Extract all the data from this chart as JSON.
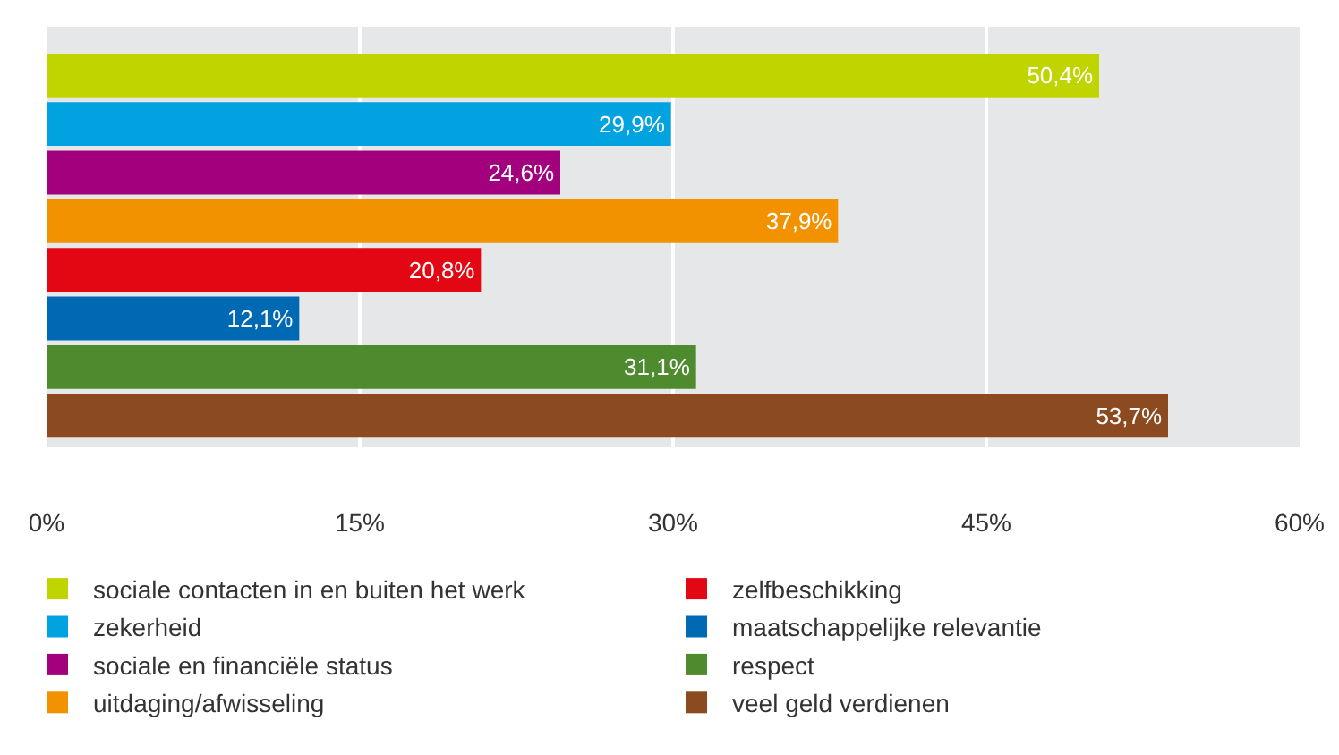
{
  "chart_data": {
    "type": "bar",
    "orientation": "horizontal",
    "categories": [
      null,
      null,
      null,
      null,
      null,
      null,
      null,
      null
    ],
    "series": [
      {
        "name": "sociale contacten in en buiten het werk",
        "color": "#c0d400",
        "values": [
          50.4,
          null,
          null,
          null,
          null,
          null,
          null,
          null
        ],
        "value_labels": [
          "50,4%",
          null,
          null,
          null,
          null,
          null,
          null,
          null
        ]
      },
      {
        "name": "zekerheid",
        "color": "#00a3e0",
        "values": [
          null,
          29.9,
          null,
          null,
          null,
          null,
          null,
          null
        ],
        "value_labels": [
          null,
          "29,9%",
          null,
          null,
          null,
          null,
          null,
          null
        ]
      },
      {
        "name": "sociale en financiële status",
        "color": "#a3007e",
        "values": [
          null,
          null,
          24.6,
          null,
          null,
          null,
          null,
          null
        ],
        "value_labels": [
          null,
          null,
          "24,6%",
          null,
          null,
          null,
          null,
          null
        ]
      },
      {
        "name": "uitdaging/afwisseling",
        "color": "#f39200",
        "values": [
          null,
          null,
          null,
          37.9,
          null,
          null,
          null,
          null
        ],
        "value_labels": [
          null,
          null,
          null,
          "37,9%",
          null,
          null,
          null,
          null
        ]
      },
      {
        "name": "zelfbeschikking",
        "color": "#e30613",
        "values": [
          null,
          null,
          null,
          null,
          20.8,
          null,
          null,
          null
        ],
        "value_labels": [
          null,
          null,
          null,
          null,
          "20,8%",
          null,
          null,
          null
        ]
      },
      {
        "name": "maatschappelijke relevantie",
        "color": "#0069b4",
        "values": [
          null,
          null,
          null,
          null,
          null,
          12.1,
          null,
          null
        ],
        "value_labels": [
          null,
          null,
          null,
          null,
          null,
          "12,1%",
          null,
          null
        ]
      },
      {
        "name": "respect",
        "color": "#4e8a2e",
        "values": [
          null,
          null,
          null,
          null,
          null,
          null,
          31.1,
          null
        ],
        "value_labels": [
          null,
          null,
          null,
          null,
          null,
          null,
          "31,1%",
          null
        ]
      },
      {
        "name": "veel geld verdienen",
        "color": "#8b4a1f",
        "values": [
          null,
          null,
          null,
          null,
          null,
          null,
          null,
          53.7
        ],
        "value_labels": [
          null,
          null,
          null,
          null,
          null,
          null,
          null,
          "53,7%"
        ]
      }
    ],
    "xlim": [
      0,
      60
    ],
    "xticks": [
      {
        "value": 0,
        "label": "0%"
      },
      {
        "value": 15,
        "label": "15%"
      },
      {
        "value": 30,
        "label": "30%"
      },
      {
        "value": 45,
        "label": "45%"
      },
      {
        "value": 60,
        "label": "60%"
      }
    ],
    "grid": "x",
    "legend": "bottom",
    "tick_labels": "x"
  }
}
